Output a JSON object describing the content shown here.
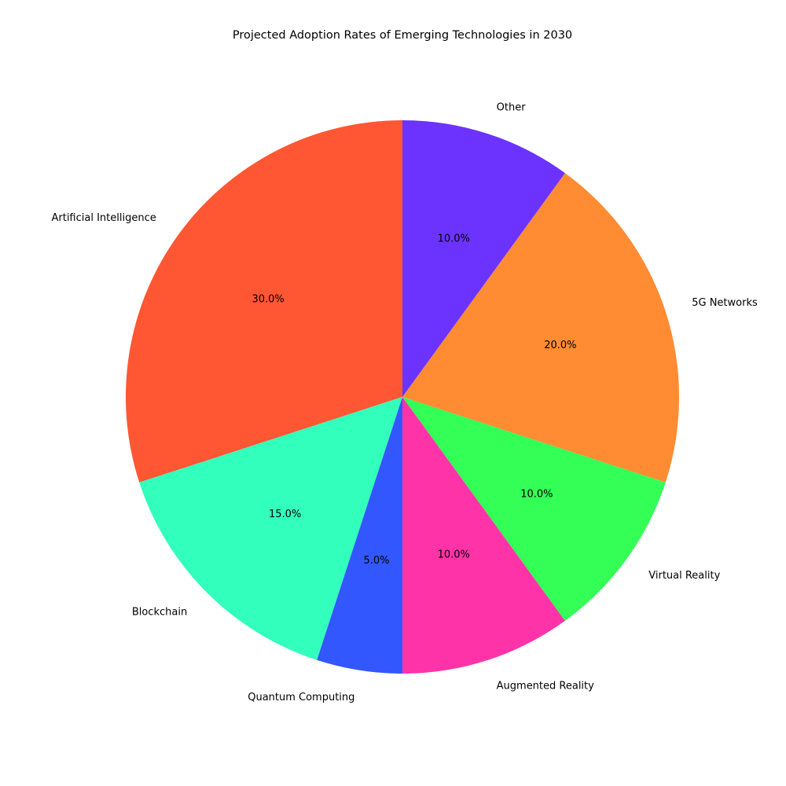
{
  "chart_data": {
    "type": "pie",
    "title": "Projected Adoption Rates of Emerging Technologies in 2030",
    "categories": [
      "Artificial Intelligence",
      "Blockchain",
      "Quantum Computing",
      "Augmented Reality",
      "Virtual Reality",
      "5G Networks",
      "Other"
    ],
    "values": [
      30,
      15,
      5,
      10,
      10,
      20,
      10
    ],
    "percent_labels": [
      "30.0%",
      "15.0%",
      "5.0%",
      "10.0%",
      "10.0%",
      "20.0%",
      "10.0%"
    ],
    "colors": [
      "#FF5733",
      "#33FFBD",
      "#3357FF",
      "#FF33A8",
      "#33FF57",
      "#FF8C33",
      "#6C33FF"
    ],
    "start_angle_deg": 90,
    "direction": "counterclockwise",
    "legend": "none"
  }
}
